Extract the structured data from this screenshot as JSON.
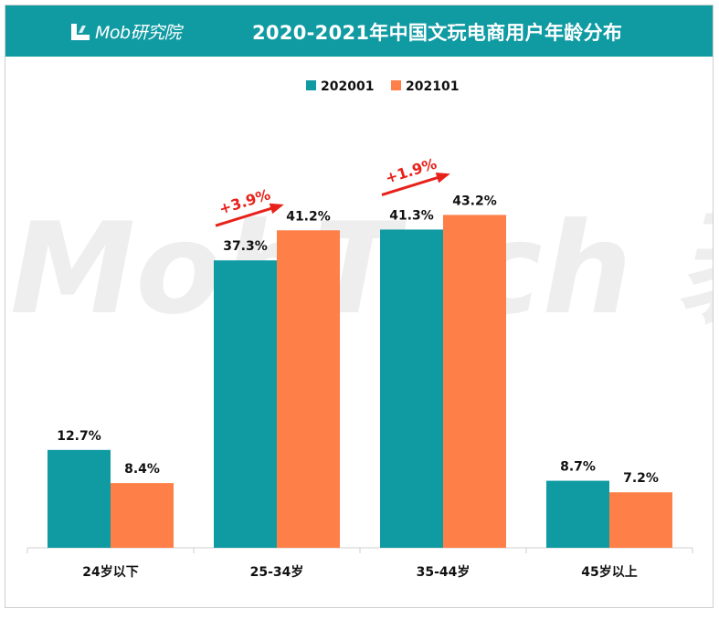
{
  "header": {
    "logo_text": "Mob研究院",
    "title": "2020-2021年中国文玩电商用户年龄分布",
    "colors": {
      "header_bg": "#109ba3"
    }
  },
  "watermark": {
    "text": "MobTech 袤博"
  },
  "chart_data": {
    "type": "bar",
    "title": "2020-2021年中国文玩电商用户年龄分布",
    "categories": [
      "24岁以下",
      "25-34岁",
      "35-44岁",
      "45岁以上"
    ],
    "series": [
      {
        "name": "202001",
        "color": "#109ba3",
        "values": [
          12.7,
          37.3,
          41.3,
          8.7
        ],
        "labels": [
          "12.7%",
          "37.3%",
          "41.3%",
          "8.7%"
        ]
      },
      {
        "name": "202101",
        "color": "#fe7f48",
        "values": [
          8.4,
          41.2,
          43.2,
          7.2
        ],
        "labels": [
          "8.4%",
          "41.2%",
          "43.2%",
          "7.2%"
        ]
      }
    ],
    "ylim": [
      0,
      50
    ],
    "legend_position": "top-center",
    "grid": false,
    "annotations": [
      {
        "category": "25-34岁",
        "text": "+3.9%",
        "color": "#e8211a"
      },
      {
        "category": "35-44岁",
        "text": "+1.9%",
        "color": "#e8211a"
      }
    ]
  }
}
